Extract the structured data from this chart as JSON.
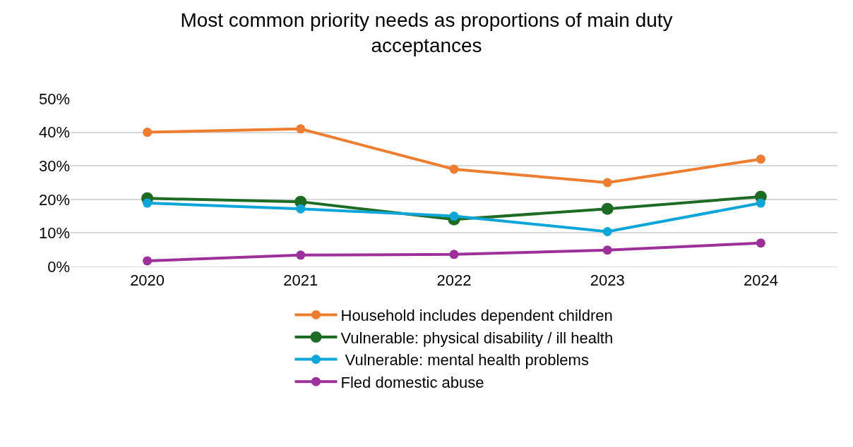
{
  "chart_data": {
    "type": "line",
    "title": "Most common priority needs as proportions of main duty\nacceptances",
    "categories": [
      "2020",
      "2021",
      "2022",
      "2023",
      "2024"
    ],
    "series": [
      {
        "name": "Household includes dependent children",
        "color": "#ed7d31",
        "values": [
          40,
          41,
          29,
          25,
          32
        ]
      },
      {
        "name": "Vulnerable: physical disability / ill health",
        "color": "#1e6b24",
        "values": [
          20.3,
          19.3,
          14,
          17.2,
          20.8
        ]
      },
      {
        "name": " Vulnerable: mental health problems",
        "color": "#0ea5d8",
        "values": [
          18.9,
          17.2,
          15,
          10.4,
          18.9
        ]
      },
      {
        "name": "Fled domestic abuse",
        "color": "#9e309a",
        "values": [
          1.7,
          3.4,
          3.6,
          4.9,
          7
        ]
      }
    ],
    "ylim": [
      0,
      50
    ],
    "yticks": [
      {
        "value": 0,
        "label": "0%"
      },
      {
        "value": 10,
        "label": "10%"
      },
      {
        "value": 20,
        "label": "20%"
      },
      {
        "value": 30,
        "label": "30%"
      },
      {
        "value": 40,
        "label": "40%"
      },
      {
        "value": 50,
        "label": "50%"
      }
    ],
    "grid": "y",
    "legend": "bottom",
    "marker": "circle",
    "line_style": "solid"
  }
}
